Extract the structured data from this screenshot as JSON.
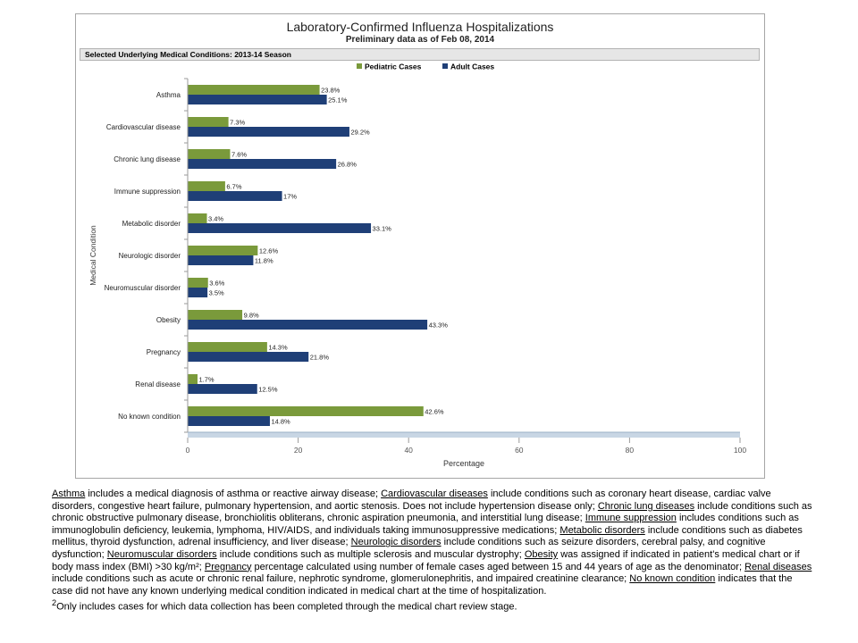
{
  "chart": {
    "title": "Laboratory-Confirmed Influenza Hospitalizations",
    "subtitle": "Preliminary data as of Feb 08, 2014",
    "panel_header": "Selected Underlying Medical Conditions: 2013-14 Season"
  },
  "chart_data": {
    "type": "bar",
    "orientation": "horizontal",
    "categories": [
      "Asthma",
      "Cardiovascular disease",
      "Chronic lung disease",
      "Immune suppression",
      "Metabolic disorder",
      "Neurologic disorder",
      "Neuromuscular disorder",
      "Obesity",
      "Pregnancy",
      "Renal disease",
      "No known condition"
    ],
    "series": [
      {
        "name": "Pediatric Cases",
        "color": "#7a9a3b",
        "values": [
          23.8,
          7.3,
          7.6,
          6.7,
          3.4,
          12.6,
          3.6,
          9.8,
          14.3,
          1.7,
          42.6
        ],
        "labels": [
          "23.8%",
          "7.3%",
          "7.6%",
          "6.7%",
          "3.4%",
          "12.6%",
          "3.6%",
          "9.8%",
          "14.3%",
          "1.7%",
          "42.6%"
        ]
      },
      {
        "name": "Adult Cases",
        "color": "#1f3f77",
        "values": [
          25.1,
          29.2,
          26.8,
          17,
          33.1,
          11.8,
          3.5,
          43.3,
          21.8,
          12.5,
          14.8
        ],
        "labels": [
          "25.1%",
          "29.2%",
          "26.8%",
          "17%",
          "33.1%",
          "11.8%",
          "3.5%",
          "43.3%",
          "21.8%",
          "12.5%",
          "14.8%"
        ]
      }
    ],
    "xlabel": "Percentage",
    "ylabel": "Medical Condition",
    "xlim": [
      0,
      100
    ],
    "xticks": [
      0,
      20,
      40,
      60,
      80,
      100
    ],
    "grid": false,
    "legend_position": "top"
  },
  "footnotes": {
    "asthma_term": "Asthma",
    "asthma_text": " includes a medical diagnosis of asthma or reactive airway disease; ",
    "cardio_term": "Cardiovascular diseases",
    "cardio_text": " include conditions such as coronary heart disease, cardiac valve disorders, congestive heart failure, pulmonary hypertension, and aortic stenosis.  Does not include hypertension disease only;  ",
    "lung_term": "Chronic lung diseases",
    "lung_text": " include conditions such as chronic obstructive pulmonary disease, bronchiolitis obliterans, chronic aspiration pneumonia, and interstitial lung disease;  ",
    "immune_term": "Immune suppression",
    "immune_text": " includes conditions such as immunoglobulin deficiency, leukemia, lymphoma, HIV/AIDS, and individuals taking immunosuppressive medications; ",
    "metabolic_term": "Metabolic disorders",
    "metabolic_text": " include conditions such as diabetes mellitus, thyroid dysfunction, adrenal insufficiency, and liver disease;  ",
    "neuro_term": "Neurologic disorders",
    "neuro_text": " include conditions such as seizure disorders, cerebral palsy, and cognitive dysfunction;  ",
    "neuromuscular_term": "Neuromuscular disorders",
    "neuromuscular_text": " include conditions such as multiple sclerosis and muscular dystrophy;  ",
    "obesity_term": "Obesity",
    "obesity_text": " was assigned if indicated in patient's medical chart or if body mass index (BMI) >30 kg/m²;  ",
    "pregnancy_term": "Pregnancy",
    "pregnancy_text": " percentage calculated using number of female cases aged between 15 and 44 years of age as the denominator;  ",
    "renal_term": "Renal diseases",
    "renal_text": " include conditions such as acute or chronic renal failure, nephrotic syndrome, glomerulonephritis, and impaired creatinine clearance;  ",
    "noknown_term": "No known condition",
    "noknown_text": " indicates that the case did not have any known underlying medical condition indicated in medical chart at the time of hospitalization.",
    "note_marker": "2",
    "note_text": "Only includes cases for which data collection has been completed through the medical chart review stage."
  }
}
